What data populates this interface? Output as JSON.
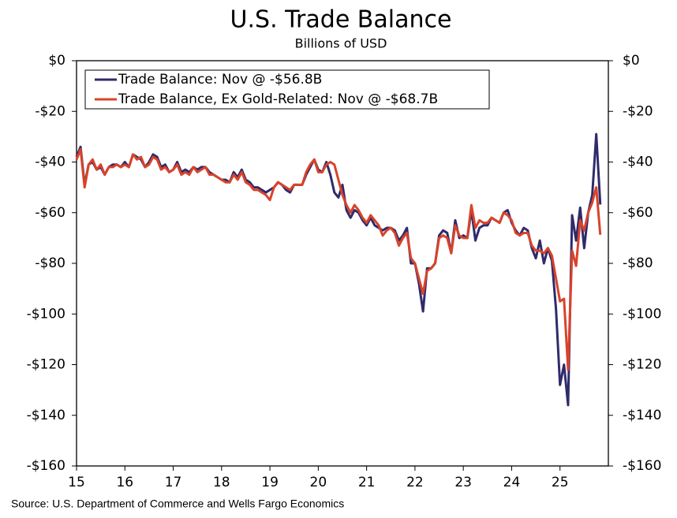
{
  "chart_data": {
    "type": "line",
    "title": "U.S. Trade Balance",
    "subtitle": "Billions of USD",
    "source": "Source: U.S. Department of Commerce and Wells Fargo Economics",
    "legend": "upper left",
    "x": [
      15.0,
      15.083,
      15.167,
      15.25,
      15.333,
      15.417,
      15.5,
      15.583,
      15.667,
      15.75,
      15.833,
      15.917,
      16.0,
      16.083,
      16.167,
      16.25,
      16.333,
      16.417,
      16.5,
      16.583,
      16.667,
      16.75,
      16.833,
      16.917,
      17.0,
      17.083,
      17.167,
      17.25,
      17.333,
      17.417,
      17.5,
      17.583,
      17.667,
      17.75,
      17.833,
      17.917,
      18.0,
      18.083,
      18.167,
      18.25,
      18.333,
      18.417,
      18.5,
      18.583,
      18.667,
      18.75,
      18.833,
      18.917,
      19.0,
      19.083,
      19.167,
      19.25,
      19.333,
      19.417,
      19.5,
      19.583,
      19.667,
      19.75,
      19.833,
      19.917,
      20.0,
      20.083,
      20.167,
      20.25,
      20.333,
      20.417,
      20.5,
      20.583,
      20.667,
      20.75,
      20.833,
      20.917,
      21.0,
      21.083,
      21.167,
      21.25,
      21.333,
      21.417,
      21.5,
      21.583,
      21.667,
      21.75,
      21.833,
      21.917,
      22.0,
      22.083,
      22.167,
      22.25,
      22.333,
      22.417,
      22.5,
      22.583,
      22.667,
      22.75,
      22.833,
      22.917,
      23.0,
      23.083,
      23.167,
      23.25,
      23.333,
      23.417,
      23.5,
      23.583,
      23.667,
      23.75,
      23.833,
      23.917,
      24.0,
      24.083,
      24.167,
      24.25,
      24.333,
      24.417,
      24.5,
      24.583,
      24.667,
      24.75,
      24.833,
      24.917,
      25.0,
      25.083,
      25.167,
      25.25,
      25.333,
      25.417,
      25.5,
      25.583,
      25.667,
      25.75,
      25.833
    ],
    "series": [
      {
        "name": "Trade Balance: Nov @ -$56.8B",
        "color": "#2f2b6b",
        "values": [
          -38,
          -34,
          -49,
          -41,
          -40,
          -43,
          -42,
          -45,
          -42,
          -41,
          -41,
          -42,
          -40,
          -42,
          -37,
          -38,
          -39,
          -42,
          -40,
          -37,
          -38,
          -42,
          -41,
          -44,
          -43,
          -40,
          -44,
          -43,
          -44,
          -42,
          -43,
          -42,
          -42,
          -44,
          -45,
          -46,
          -47,
          -47,
          -48,
          -44,
          -46,
          -43,
          -47,
          -48,
          -50,
          -50,
          -51,
          -52,
          -51,
          -50,
          -48,
          -49,
          -51,
          -52,
          -49,
          -49,
          -49,
          -45,
          -42,
          -39,
          -43,
          -44,
          -40,
          -45,
          -52,
          -54,
          -49,
          -59,
          -62,
          -59,
          -60,
          -63,
          -65,
          -62,
          -65,
          -66,
          -67,
          -66,
          -66,
          -67,
          -71,
          -69,
          -66,
          -80,
          -80,
          -88,
          -99,
          -82,
          -82,
          -80,
          -69,
          -67,
          -68,
          -76,
          -63,
          -70,
          -69,
          -70,
          -59,
          -71,
          -66,
          -65,
          -65,
          -62,
          -63,
          -64,
          -60,
          -59,
          -64,
          -67,
          -69,
          -66,
          -67,
          -74,
          -78,
          -71,
          -80,
          -74,
          -79,
          -98,
          -128,
          -120,
          -136,
          -61,
          -71,
          -58,
          -74,
          -60,
          -53,
          -29,
          -56.8
        ]
      },
      {
        "name": "Trade Balance, Ex Gold-Related: Nov @ -$68.7B",
        "color": "#d9432a",
        "values": [
          -39,
          -35,
          -50,
          -41,
          -39,
          -43,
          -41,
          -45,
          -42,
          -42,
          -41,
          -42,
          -41,
          -42,
          -37,
          -39,
          -38,
          -42,
          -41,
          -38,
          -39,
          -43,
          -42,
          -44,
          -43,
          -41,
          -45,
          -44,
          -45,
          -42,
          -44,
          -43,
          -42,
          -45,
          -45,
          -46,
          -47,
          -48,
          -48,
          -45,
          -47,
          -44,
          -48,
          -49,
          -51,
          -51,
          -52,
          -53,
          -55,
          -50,
          -48,
          -49,
          -50,
          -51,
          -49,
          -49,
          -49,
          -44,
          -41,
          -39,
          -44,
          -44,
          -41,
          -40,
          -41,
          -47,
          -53,
          -57,
          -60,
          -57,
          -59,
          -62,
          -64,
          -61,
          -63,
          -65,
          -69,
          -67,
          -66,
          -68,
          -73,
          -70,
          -68,
          -78,
          -80,
          -86,
          -92,
          -83,
          -82,
          -80,
          -70,
          -69,
          -70,
          -76,
          -65,
          -69,
          -70,
          -70,
          -57,
          -66,
          -63,
          -64,
          -64,
          -62,
          -63,
          -64,
          -60,
          -61,
          -63,
          -68,
          -69,
          -68,
          -68,
          -73,
          -75,
          -75,
          -76,
          -74,
          -77,
          -86,
          -95,
          -94,
          -122,
          -75,
          -81,
          -63,
          -67,
          -60,
          -56,
          -50,
          -68.7
        ]
      }
    ],
    "xlim": [
      15,
      26
    ],
    "xticks": [
      15,
      16,
      17,
      18,
      19,
      20,
      21,
      22,
      23,
      24,
      25
    ],
    "ylim": [
      -160,
      0
    ],
    "yticks": [
      {
        "value": 0,
        "label": "$0"
      },
      {
        "value": -20,
        "label": "-$20"
      },
      {
        "value": -40,
        "label": "-$40"
      },
      {
        "value": -60,
        "label": "-$60"
      },
      {
        "value": -80,
        "label": "-$80"
      },
      {
        "value": -100,
        "label": "-$100"
      },
      {
        "value": -120,
        "label": "-$120"
      },
      {
        "value": -140,
        "label": "-$140"
      },
      {
        "value": -160,
        "label": "-$160"
      }
    ],
    "y2lim": [
      -160,
      0
    ],
    "y2ticks": [
      {
        "value": 0,
        "label": "$0"
      },
      {
        "value": -20,
        "label": "-$20"
      },
      {
        "value": -40,
        "label": "-$40"
      },
      {
        "value": -60,
        "label": "-$60"
      },
      {
        "value": -80,
        "label": "-$80"
      },
      {
        "value": -100,
        "label": "-$100"
      },
      {
        "value": -120,
        "label": "-$120"
      },
      {
        "value": -140,
        "label": "-$140"
      },
      {
        "value": -160,
        "label": "-$160"
      }
    ]
  }
}
